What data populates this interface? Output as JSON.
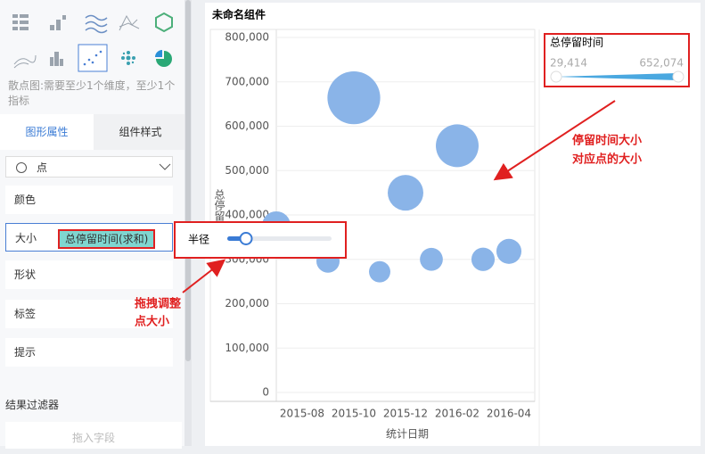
{
  "sidebar": {
    "hint": "散点图:需要至少1个维度，至少1个指标",
    "tabs": [
      "图形属性",
      "组件样式"
    ],
    "mark_type": "点",
    "properties": [
      "颜色",
      "大小",
      "形状",
      "标签",
      "提示"
    ],
    "size_field": "总停留时间(求和)",
    "filter_title": "结果过滤器",
    "filter_placeholder": "拖入字段"
  },
  "popup": {
    "label": "半径"
  },
  "annotations": [
    "停留时间大小",
    "对应点的大小",
    "拖拽调整",
    "点大小"
  ],
  "chart_data": {
    "type": "scatter",
    "title": "未命名组件",
    "x_label": "统计日期",
    "y_label": "总停留时间",
    "x": [
      "2015-07",
      "2015-09",
      "2015-10",
      "2015-11",
      "2015-12",
      "2016-01",
      "2016-02",
      "2016-03",
      "2016-04"
    ],
    "series": [
      {
        "name": "总停留时间",
        "color": "#8ab4e8",
        "values": [
          376000,
          296000,
          664000,
          272000,
          450000,
          300000,
          556000,
          300000,
          318000
        ],
        "sizes": [
          216000,
          123000,
          640000,
          91000,
          340000,
          118000,
          465000,
          125000,
          155000
        ]
      }
    ],
    "xlim": [
      "2015-07",
      "2016-05"
    ],
    "xticks": [
      "2015-08",
      "2015-10",
      "2015-12",
      "2016-02",
      "2016-04"
    ],
    "ylim": [
      0,
      800000
    ],
    "yticks": [
      0,
      {
        "value": 100000,
        "label": "100,000"
      },
      {
        "value": 200000,
        "label": "200,000"
      },
      {
        "value": 300000,
        "label": "300,000"
      },
      {
        "value": 400000,
        "label": "400,000"
      },
      {
        "value": 500000,
        "label": "500,000"
      },
      {
        "value": 600000,
        "label": "600,000"
      },
      {
        "value": 700000,
        "label": "700,000"
      },
      {
        "value": 800000,
        "label": "800,000"
      }
    ],
    "grid": true,
    "size_legend": {
      "title": "总停留时间",
      "range": [
        {
          "value": 29414,
          "label": "29,414"
        },
        {
          "value": 652074,
          "label": "652,074"
        }
      ]
    }
  }
}
